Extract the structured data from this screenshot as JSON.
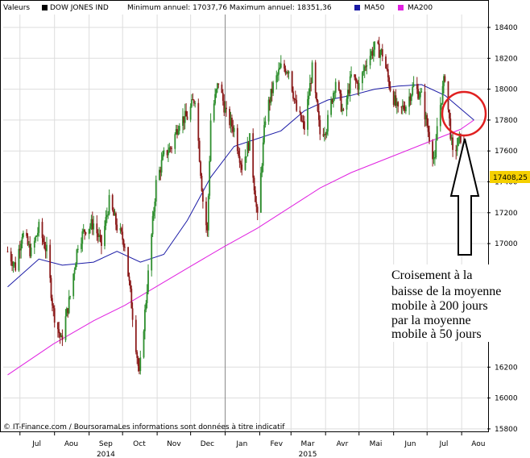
{
  "header": {
    "valeurs_label": "Valeurs",
    "instrument": "DOW JONES IND",
    "min_max": "Minimum annuel: 17037,76 Maximum annuel: 18351,36",
    "ma50_label": "MA50",
    "ma200_label": "MA200"
  },
  "footer": {
    "source": "© IT-Finance.com / BoursoramaLes informations sont données à titre indicatif"
  },
  "annotation": {
    "lines": [
      "Croisement à la",
      "baisse de la moyenne",
      "mobile à 200 jours",
      "par la moyenne",
      "mobile à 50 jours"
    ]
  },
  "last_price_label": "17408,25",
  "colors": {
    "up_candle": "#2f8f2f",
    "down_candle": "#8b1a1a",
    "ma50": "#1a1aa6",
    "ma200": "#e020e0",
    "last_price_bg": "#f5d000",
    "circle": "#e02020"
  },
  "chart_data": {
    "type": "candlestick",
    "title": "",
    "xlabel": "",
    "ylabel": "",
    "ylim": [
      15700,
      18500
    ],
    "y_ticks": [
      15800,
      16000,
      16200,
      17000,
      17200,
      17400,
      17600,
      17800,
      18000,
      18200,
      18400
    ],
    "x_ticks": [
      {
        "label": "Jul",
        "month": "2014-07"
      },
      {
        "label": "Aou",
        "month": "2014-08"
      },
      {
        "label": "Sep",
        "month": "2014-09"
      },
      {
        "label": "Oct",
        "month": "2014-10"
      },
      {
        "label": "Nov",
        "month": "2014-11"
      },
      {
        "label": "Dec",
        "month": "2014-12"
      },
      {
        "label": "Jan",
        "month": "2015-01"
      },
      {
        "label": "Fev",
        "month": "2015-02"
      },
      {
        "label": "Mar",
        "month": "2015-03"
      },
      {
        "label": "Avr",
        "month": "2015-04"
      },
      {
        "label": "Mai",
        "month": "2015-05"
      },
      {
        "label": "Jun",
        "month": "2015-06"
      },
      {
        "label": "Jul",
        "month": "2015-07"
      },
      {
        "label": "Aou",
        "month": "2015-08"
      }
    ],
    "year_labels": [
      {
        "label": "2014",
        "month": "2014-09"
      },
      {
        "label": "2015",
        "month": "2015-03"
      }
    ],
    "last_price": 17408.25,
    "closes": [
      {
        "date": "2014-06-20",
        "close": 16950
      },
      {
        "date": "2014-06-27",
        "close": 16850
      },
      {
        "date": "2014-07-03",
        "close": 17070
      },
      {
        "date": "2014-07-11",
        "close": 16940
      },
      {
        "date": "2014-07-18",
        "close": 17100
      },
      {
        "date": "2014-07-25",
        "close": 16950
      },
      {
        "date": "2014-07-31",
        "close": 16560
      },
      {
        "date": "2014-08-07",
        "close": 16370
      },
      {
        "date": "2014-08-15",
        "close": 16660
      },
      {
        "date": "2014-08-22",
        "close": 17000
      },
      {
        "date": "2014-08-29",
        "close": 17100
      },
      {
        "date": "2014-09-05",
        "close": 17130
      },
      {
        "date": "2014-09-12",
        "close": 16990
      },
      {
        "date": "2014-09-19",
        "close": 17270
      },
      {
        "date": "2014-09-26",
        "close": 17110
      },
      {
        "date": "2014-10-03",
        "close": 17000
      },
      {
        "date": "2014-10-10",
        "close": 16540
      },
      {
        "date": "2014-10-16",
        "close": 16140
      },
      {
        "date": "2014-10-24",
        "close": 16800
      },
      {
        "date": "2014-10-31",
        "close": 17390
      },
      {
        "date": "2014-11-07",
        "close": 17570
      },
      {
        "date": "2014-11-14",
        "close": 17630
      },
      {
        "date": "2014-11-21",
        "close": 17800
      },
      {
        "date": "2014-11-28",
        "close": 17820
      },
      {
        "date": "2014-12-05",
        "close": 17950
      },
      {
        "date": "2014-12-12",
        "close": 17280
      },
      {
        "date": "2014-12-16",
        "close": 17070
      },
      {
        "date": "2014-12-19",
        "close": 17800
      },
      {
        "date": "2014-12-26",
        "close": 18050
      },
      {
        "date": "2015-01-02",
        "close": 17830
      },
      {
        "date": "2015-01-09",
        "close": 17740
      },
      {
        "date": "2015-01-16",
        "close": 17500
      },
      {
        "date": "2015-01-23",
        "close": 17670
      },
      {
        "date": "2015-01-30",
        "close": 17160
      },
      {
        "date": "2015-02-06",
        "close": 17820
      },
      {
        "date": "2015-02-13",
        "close": 18020
      },
      {
        "date": "2015-02-20",
        "close": 18140
      },
      {
        "date": "2015-02-27",
        "close": 18130
      },
      {
        "date": "2015-03-06",
        "close": 17860
      },
      {
        "date": "2015-03-13",
        "close": 17750
      },
      {
        "date": "2015-03-20",
        "close": 18130
      },
      {
        "date": "2015-03-27",
        "close": 17710
      },
      {
        "date": "2015-04-02",
        "close": 17760
      },
      {
        "date": "2015-04-10",
        "close": 18060
      },
      {
        "date": "2015-04-17",
        "close": 17830
      },
      {
        "date": "2015-04-24",
        "close": 18080
      },
      {
        "date": "2015-05-01",
        "close": 18020
      },
      {
        "date": "2015-05-08",
        "close": 18190
      },
      {
        "date": "2015-05-15",
        "close": 18270
      },
      {
        "date": "2015-05-22",
        "close": 18230
      },
      {
        "date": "2015-05-29",
        "close": 18010
      },
      {
        "date": "2015-06-05",
        "close": 17850
      },
      {
        "date": "2015-06-12",
        "close": 17900
      },
      {
        "date": "2015-06-19",
        "close": 18020
      },
      {
        "date": "2015-06-26",
        "close": 17950
      },
      {
        "date": "2015-07-02",
        "close": 17730
      },
      {
        "date": "2015-07-08",
        "close": 17520
      },
      {
        "date": "2015-07-10",
        "close": 17760
      },
      {
        "date": "2015-07-17",
        "close": 18090
      },
      {
        "date": "2015-07-24",
        "close": 17570
      },
      {
        "date": "2015-07-31",
        "close": 17690
      },
      {
        "date": "2015-08-07",
        "close": 17370
      },
      {
        "date": "2015-08-12",
        "close": 17408.25
      }
    ],
    "ma50": [
      {
        "date": "2014-06-20",
        "value": 16720
      },
      {
        "date": "2014-07-18",
        "value": 16900
      },
      {
        "date": "2014-08-08",
        "value": 16860
      },
      {
        "date": "2014-09-05",
        "value": 16880
      },
      {
        "date": "2014-09-26",
        "value": 16950
      },
      {
        "date": "2014-10-17",
        "value": 16880
      },
      {
        "date": "2014-11-07",
        "value": 16930
      },
      {
        "date": "2014-11-28",
        "value": 17150
      },
      {
        "date": "2014-12-19",
        "value": 17430
      },
      {
        "date": "2015-01-09",
        "value": 17630
      },
      {
        "date": "2015-01-30",
        "value": 17680
      },
      {
        "date": "2015-02-20",
        "value": 17730
      },
      {
        "date": "2015-03-13",
        "value": 17860
      },
      {
        "date": "2015-04-03",
        "value": 17930
      },
      {
        "date": "2015-04-24",
        "value": 17960
      },
      {
        "date": "2015-05-15",
        "value": 18000
      },
      {
        "date": "2015-06-05",
        "value": 18020
      },
      {
        "date": "2015-06-26",
        "value": 18030
      },
      {
        "date": "2015-07-17",
        "value": 17960
      },
      {
        "date": "2015-08-12",
        "value": 17800
      }
    ],
    "ma200": [
      {
        "date": "2014-06-20",
        "value": 16150
      },
      {
        "date": "2014-07-31",
        "value": 16350
      },
      {
        "date": "2014-09-05",
        "value": 16500
      },
      {
        "date": "2014-10-03",
        "value": 16600
      },
      {
        "date": "2014-10-31",
        "value": 16720
      },
      {
        "date": "2014-11-28",
        "value": 16840
      },
      {
        "date": "2014-12-31",
        "value": 16980
      },
      {
        "date": "2015-01-30",
        "value": 17100
      },
      {
        "date": "2015-02-27",
        "value": 17230
      },
      {
        "date": "2015-03-27",
        "value": 17360
      },
      {
        "date": "2015-04-24",
        "value": 17460
      },
      {
        "date": "2015-05-29",
        "value": 17560
      },
      {
        "date": "2015-06-26",
        "value": 17640
      },
      {
        "date": "2015-07-31",
        "value": 17740
      },
      {
        "date": "2015-08-12",
        "value": 17800
      }
    ]
  }
}
